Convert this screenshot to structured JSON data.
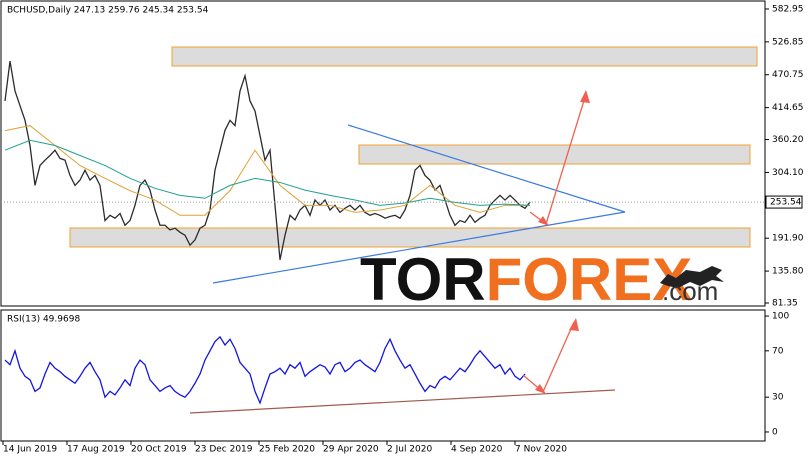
{
  "chart_data": [
    {
      "type": "line",
      "title": "BCHUSD,Daily  247.13 259.76 245.34 253.54",
      "ylim": [
        76.25,
        596.55
      ],
      "yticks": [
        582.95,
        526.85,
        470.75,
        414.65,
        {
          "value": 360.2,
          "label": "360.20"
        },
        {
          "value": 304.1,
          "label": "304.10"
        },
        {
          "value": 191.9,
          "label": "191.90"
        },
        {
          "value": 135.8,
          "label": "135.80"
        },
        81.35
      ],
      "series": [
        {
          "color": "#2b2b2b",
          "values": [
            426,
            494,
            443,
            418,
            393,
            350,
            282,
            316,
            325,
            333,
            342,
            328,
            325,
            299,
            282,
            291,
            308,
            291,
            299,
            282,
            222,
            231,
            226,
            234,
            214,
            222,
            248,
            282,
            291,
            274,
            240,
            214,
            214,
            206,
            209,
            202,
            197,
            180,
            189,
            209,
            214,
            240,
            308,
            342,
            376,
            393,
            384,
            443,
            469,
            426,
            409,
            367,
            325,
            342,
            248,
            155,
            197,
            231,
            223,
            240,
            248,
            231,
            257,
            248,
            257,
            240,
            248,
            236,
            243,
            248,
            240,
            248,
            236,
            231,
            234,
            231,
            226,
            229,
            231,
            226,
            240,
            265,
            308,
            316,
            299,
            291,
            274,
            282,
            257,
            231,
            214,
            222,
            219,
            231,
            219,
            226,
            231,
            248,
            257,
            265,
            257,
            265,
            257,
            248,
            243,
            253.54
          ]
        },
        {
          "color": "#e0a030",
          "values": [
            375.5,
            384,
            350,
            316,
            294,
            273,
            257,
            231,
            231,
            273,
            342,
            282,
            248,
            248,
            236,
            240,
            248,
            282,
            248,
            236,
            248,
            248
          ]
        },
        {
          "color": "#20a090",
          "values": [
            342,
            359,
            350,
            333,
            316,
            294,
            277,
            265,
            260,
            282,
            294,
            287,
            274,
            265,
            257,
            248,
            252,
            260,
            253,
            248,
            250,
            248
          ]
        }
      ]
    },
    {
      "type": "line",
      "title": "RSI(13) 49.9698",
      "ylim": [
        -7.8,
        105.2
      ],
      "yticks": [
        100,
        70,
        30,
        0
      ],
      "series": [
        {
          "color": "#1515e0",
          "values": [
            62,
            58,
            70,
            55,
            48,
            45,
            35,
            38,
            50,
            60,
            55,
            52,
            48,
            45,
            42,
            48,
            55,
            60,
            52,
            45,
            30,
            35,
            32,
            38,
            45,
            40,
            55,
            62,
            58,
            45,
            40,
            35,
            38,
            40,
            35,
            32,
            30,
            35,
            42,
            50,
            62,
            70,
            78,
            82,
            75,
            80,
            72,
            60,
            55,
            50,
            35,
            25,
            38,
            50,
            52,
            55,
            50,
            58,
            55,
            60,
            48,
            52,
            55,
            58,
            56,
            50,
            58,
            60,
            52,
            55,
            60,
            62,
            58,
            55,
            52,
            60,
            72,
            80,
            70,
            62,
            55,
            58,
            50,
            42,
            35,
            40,
            38,
            45,
            48,
            45,
            50,
            55,
            52,
            58,
            65,
            70,
            65,
            60,
            55,
            58,
            50,
            55,
            48,
            45,
            50
          ]
        }
      ],
      "xtick_labels": [
        "14 Jun 2019",
        "17 Aug 2019",
        "20 Oct 2019",
        "23 Dec 2019",
        "25 Feb 2020",
        "29 Apr 2020",
        "2 Jul 2020",
        "4 Sep 2020",
        "7 Nov 2020"
      ]
    }
  ],
  "watermark": {
    "brand_dark": "TOR",
    "brand_accent": "FOREX",
    "suffix": ".com"
  }
}
